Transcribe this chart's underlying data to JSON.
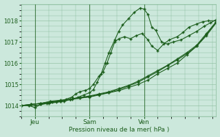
{
  "xlabel": "Pression niveau de la mer( hPa )",
  "bg_color": "#cce8dc",
  "grid_color": "#88bb99",
  "line_color": "#1a5c1a",
  "ylim": [
    1013.5,
    1018.8
  ],
  "xlim": [
    0.0,
    1.0
  ],
  "yticks": [
    1014,
    1015,
    1016,
    1017,
    1018
  ],
  "day_labels": [
    "Jeu",
    "Sam",
    "Ven"
  ],
  "day_positions": [
    0.07,
    0.35,
    0.63
  ],
  "series": [
    {
      "x": [
        0.0,
        0.05,
        0.1,
        0.15,
        0.2,
        0.25,
        0.3,
        0.35,
        0.4,
        0.45,
        0.5,
        0.55,
        0.6,
        0.65,
        0.7,
        0.75,
        0.8,
        0.85,
        0.9,
        0.95,
        1.0
      ],
      "y": [
        1014.0,
        1014.05,
        1014.1,
        1014.15,
        1014.2,
        1014.3,
        1014.35,
        1014.4,
        1014.5,
        1014.6,
        1014.7,
        1014.85,
        1015.0,
        1015.2,
        1015.5,
        1015.75,
        1016.0,
        1016.4,
        1016.8,
        1017.3,
        1017.9
      ]
    },
    {
      "x": [
        0.0,
        0.05,
        0.1,
        0.15,
        0.2,
        0.25,
        0.3,
        0.35,
        0.4,
        0.45,
        0.5,
        0.55,
        0.6,
        0.65,
        0.7,
        0.75,
        0.8,
        0.85,
        0.9,
        0.95,
        1.0
      ],
      "y": [
        1014.0,
        1014.05,
        1014.1,
        1014.2,
        1014.25,
        1014.3,
        1014.38,
        1014.45,
        1014.55,
        1014.65,
        1014.8,
        1014.95,
        1015.15,
        1015.4,
        1015.65,
        1015.9,
        1016.2,
        1016.5,
        1016.85,
        1017.4,
        1017.95
      ]
    },
    {
      "x": [
        0.0,
        0.05,
        0.1,
        0.15,
        0.2,
        0.25,
        0.3,
        0.35,
        0.4,
        0.45,
        0.5,
        0.55,
        0.6,
        0.65,
        0.7,
        0.75,
        0.8,
        0.85,
        0.9,
        0.95,
        1.0
      ],
      "y": [
        1014.0,
        1014.05,
        1014.1,
        1014.18,
        1014.22,
        1014.28,
        1014.35,
        1014.42,
        1014.52,
        1014.62,
        1014.75,
        1014.92,
        1015.1,
        1015.35,
        1015.6,
        1015.88,
        1016.15,
        1016.45,
        1016.8,
        1017.35,
        1017.95
      ]
    },
    {
      "x": [
        0.0,
        0.04,
        0.07,
        0.1,
        0.13,
        0.16,
        0.2,
        0.23,
        0.26,
        0.28,
        0.3,
        0.33,
        0.35,
        0.37,
        0.4,
        0.42,
        0.44,
        0.46,
        0.48,
        0.5,
        0.53,
        0.56,
        0.59,
        0.62,
        0.65,
        0.67,
        0.7,
        0.73,
        0.76,
        0.8,
        0.83,
        0.86,
        0.9,
        0.93,
        0.96,
        1.0
      ],
      "y": [
        1014.0,
        1014.0,
        1013.9,
        1014.05,
        1014.1,
        1014.15,
        1014.2,
        1014.3,
        1014.4,
        1014.55,
        1014.65,
        1014.72,
        1014.8,
        1015.0,
        1015.4,
        1015.6,
        1016.0,
        1016.5,
        1017.0,
        1017.15,
        1017.25,
        1017.15,
        1017.3,
        1017.4,
        1017.1,
        1016.8,
        1016.6,
        1016.9,
        1017.1,
        1017.25,
        1017.45,
        1017.7,
        1017.85,
        1017.95,
        1018.0,
        1018.0
      ]
    },
    {
      "x": [
        0.0,
        0.04,
        0.07,
        0.1,
        0.14,
        0.18,
        0.22,
        0.26,
        0.29,
        0.32,
        0.35,
        0.37,
        0.39,
        0.41,
        0.43,
        0.45,
        0.48,
        0.5,
        0.52,
        0.55,
        0.58,
        0.61,
        0.63,
        0.65,
        0.67,
        0.69,
        0.72,
        0.75,
        0.78,
        0.82,
        0.86,
        0.9,
        0.94,
        0.97,
        1.0
      ],
      "y": [
        1014.0,
        1014.0,
        1014.0,
        1014.05,
        1014.1,
        1014.15,
        1014.2,
        1014.3,
        1014.38,
        1014.5,
        1014.6,
        1014.75,
        1015.1,
        1015.5,
        1016.0,
        1016.5,
        1017.1,
        1017.5,
        1017.8,
        1018.1,
        1018.4,
        1018.6,
        1018.55,
        1018.3,
        1017.7,
        1017.55,
        1017.0,
        1016.9,
        1017.0,
        1017.1,
        1017.3,
        1017.5,
        1017.75,
        1017.9,
        1018.05
      ]
    }
  ]
}
